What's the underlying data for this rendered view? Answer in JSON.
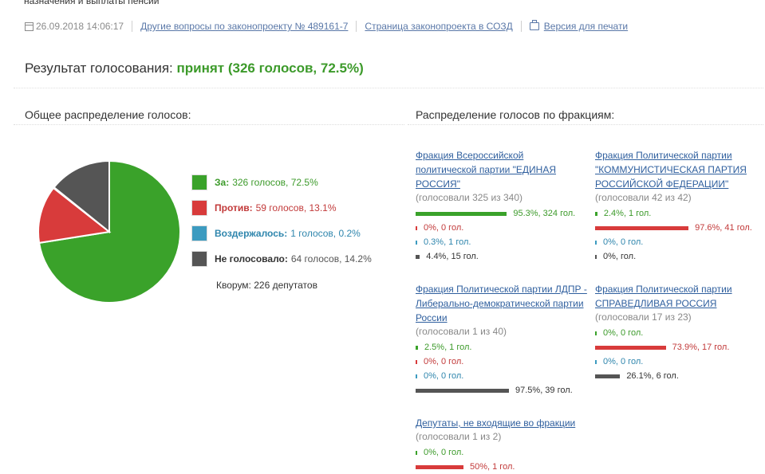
{
  "breadcrumb": "назначения и выплаты пенсий",
  "meta": {
    "timestamp": "26.09.2018 14:06:17",
    "link_other": "Другие вопросы по законопроекту № 489161-7",
    "link_page": "Страница законопроекта в СОЗД",
    "link_print": "Версия для печати"
  },
  "result": {
    "label": "Результат голосования:",
    "value": "принят (326 голосов, 72.5%)"
  },
  "sections": {
    "general": "Общее распределение голосов:",
    "factions": "Распределение голосов по фракциям:"
  },
  "colors": {
    "for": "#3aa22a",
    "against": "#d83b3b",
    "abstain": "#3c9bc0",
    "absent": "#555555"
  },
  "chart_data": {
    "type": "pie",
    "categories": [
      "За",
      "Против",
      "Воздержалось",
      "Не голосовало"
    ],
    "values": [
      72.5,
      13.1,
      0.2,
      14.2
    ]
  },
  "legend": [
    {
      "key": "for",
      "label": "За:",
      "text": "326 голосов, 72.5%",
      "label_color": "#3c9a2a",
      "text_color": "#3c9a2a"
    },
    {
      "key": "against",
      "label": "Против:",
      "text": "59 голосов, 13.1%",
      "label_color": "#c23a3a",
      "text_color": "#c23a3a"
    },
    {
      "key": "abstain",
      "label": "Воздержалось:",
      "text": "1 голосов, 0.2%",
      "label_color": "#2f86ad",
      "text_color": "#2f86ad"
    },
    {
      "key": "absent",
      "label": "Не голосовало:",
      "text": "64 голосов, 14.2%",
      "label_color": "#333333",
      "text_color": "#555555"
    }
  ],
  "quorum": "Кворум: 226 депутатов",
  "factions": [
    {
      "name": "Фракция Всероссийской политической партии \"ЕДИНАЯ РОССИЯ\"",
      "voted": "(голосовали 325 из 340)",
      "rows": [
        {
          "key": "for",
          "pct": 95.3,
          "text": "95.3%, 324 гол."
        },
        {
          "key": "against",
          "pct": 0,
          "text": "0%, 0 гол."
        },
        {
          "key": "abstain",
          "pct": 0.3,
          "text": "0.3%, 1 гол."
        },
        {
          "key": "absent",
          "pct": 4.4,
          "text": "4.4%, 15 гол."
        }
      ]
    },
    {
      "name": "Фракция Политической партии \"КОММУНИСТИЧЕСКАЯ ПАРТИЯ РОССИЙСКОЙ ФЕДЕРАЦИИ\"",
      "voted": "(голосовали 42 из 42)",
      "rows": [
        {
          "key": "for",
          "pct": 2.4,
          "text": "2.4%, 1 гол."
        },
        {
          "key": "against",
          "pct": 97.6,
          "text": "97.6%, 41 гол."
        },
        {
          "key": "abstain",
          "pct": 0,
          "text": "0%, 0 гол."
        },
        {
          "key": "absent",
          "pct": 0,
          "text": "0%, гол."
        }
      ]
    },
    {
      "name": "Фракция Политической партии ЛДПР - Либерально-демократической партии России",
      "voted": "(голосовали 1 из 40)",
      "rows": [
        {
          "key": "for",
          "pct": 2.5,
          "text": "2.5%, 1 гол."
        },
        {
          "key": "against",
          "pct": 0,
          "text": "0%, 0 гол."
        },
        {
          "key": "abstain",
          "pct": 0,
          "text": "0%, 0 гол."
        },
        {
          "key": "absent",
          "pct": 97.5,
          "text": "97.5%, 39 гол."
        }
      ]
    },
    {
      "name": "Фракция Политической партии СПРАВЕДЛИВАЯ РОССИЯ",
      "voted": "(голосовали 17 из 23)",
      "rows": [
        {
          "key": "for",
          "pct": 0,
          "text": "0%, 0 гол."
        },
        {
          "key": "against",
          "pct": 73.9,
          "text": "73.9%, 17 гол."
        },
        {
          "key": "abstain",
          "pct": 0,
          "text": "0%, 0 гол."
        },
        {
          "key": "absent",
          "pct": 26.1,
          "text": "26.1%, 6 гол."
        }
      ]
    },
    {
      "name": "Депутаты, не входящие во фракции",
      "voted": "(голосовали 1 из 2)",
      "rows": [
        {
          "key": "for",
          "pct": 0,
          "text": "0%, 0 гол."
        },
        {
          "key": "against",
          "pct": 50,
          "text": "50%, 1 гол."
        }
      ]
    }
  ]
}
